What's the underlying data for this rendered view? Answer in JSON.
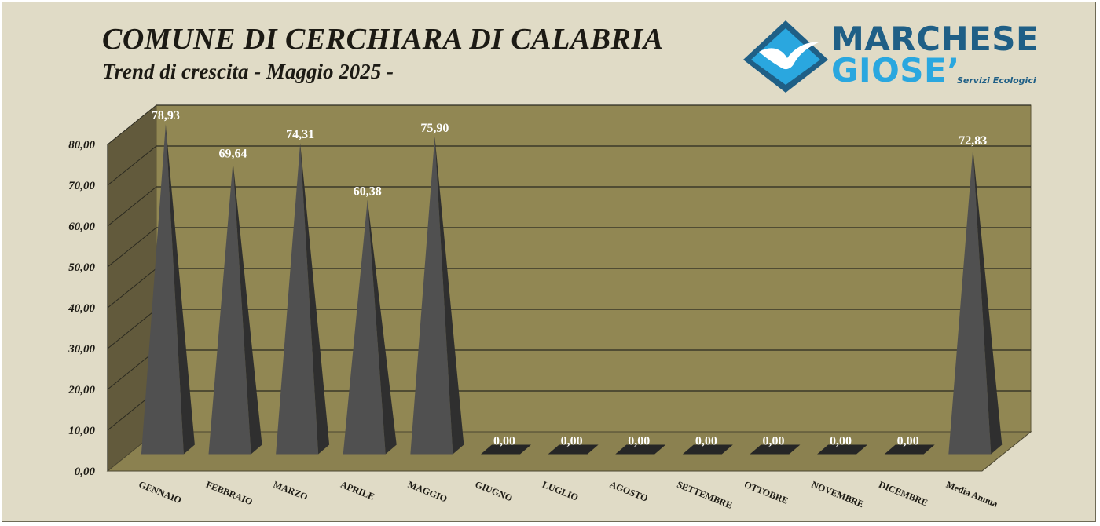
{
  "header": {
    "title": "COMUNE DI CERCHIARA DI CALABRIA",
    "subtitle": "Trend di crescita - Maggio 2025 -"
  },
  "logo": {
    "line1": "MARCHESE",
    "line2": "GIOSE’",
    "tagline": "Servizi Ecologici",
    "icon": "seagull-diamond-icon",
    "colors": {
      "dark": "#1f5f86",
      "light": "#2aa7df"
    }
  },
  "chart_data": {
    "type": "bar",
    "style": "3d-pyramid",
    "categories": [
      "GENNAIO",
      "FEBBRAIO",
      "MARZO",
      "APRILE",
      "MAGGIO",
      "GIUGNO",
      "LUGLIO",
      "AGOSTO",
      "SETTEMBRE",
      "OTTOBRE",
      "NOVEMBRE",
      "DICEMBRE",
      "Media Annua"
    ],
    "values": [
      78.93,
      69.64,
      74.31,
      60.38,
      75.9,
      0,
      0,
      0,
      0,
      0,
      0,
      0,
      72.83
    ],
    "value_labels": [
      "78,93",
      "69,64",
      "74,31",
      "60,38",
      "75,90",
      "0,00",
      "0,00",
      "0,00",
      "0,00",
      "0,00",
      "0,00",
      "0,00",
      "72,83"
    ],
    "yticks": [
      "0,00",
      "10,00",
      "20,00",
      "30,00",
      "40,00",
      "50,00",
      "60,00",
      "70,00",
      "80,00"
    ],
    "ylim": [
      0,
      80
    ],
    "grid": true,
    "legend": "none",
    "colors": {
      "wall": "#918753",
      "side_wall": "#625a3c",
      "floor": "#8b8150",
      "pyramid_front": "#505050",
      "pyramid_side": "#2f2f2f",
      "gridline": "#2b2a20"
    }
  }
}
